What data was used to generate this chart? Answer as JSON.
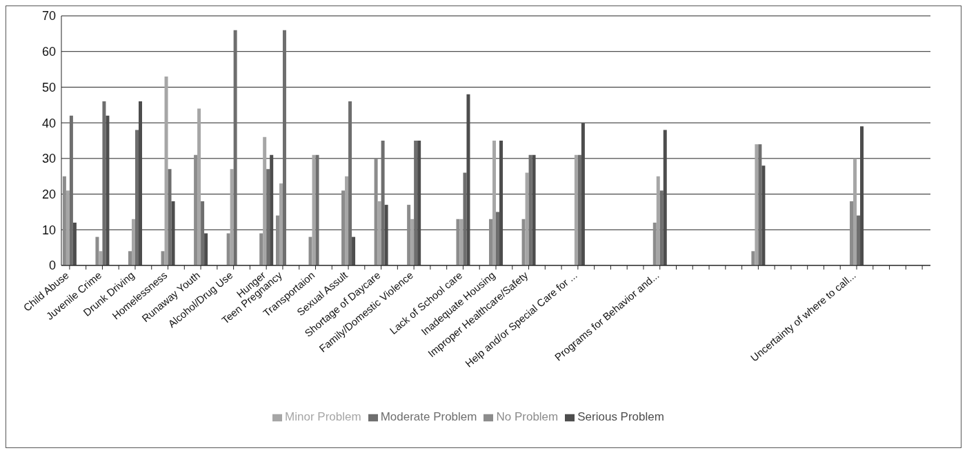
{
  "chart_data": {
    "type": "bar",
    "categories": [
      "Child Abuse",
      null,
      "Juvenile Crime",
      null,
      "Drunk Driving",
      null,
      "Homelessness",
      null,
      "Runaway Youth",
      null,
      "Alcohol/Drug Use",
      null,
      "Hunger",
      "Teen Pregnancy",
      null,
      "Transportaion",
      null,
      "Sexual Assult",
      null,
      "Shortage of Daycare",
      null,
      "Family/Domestic Violence",
      null,
      null,
      "Lack of School care",
      null,
      "Inadequate Housing",
      null,
      "Improper Healthcare/Safety",
      null,
      null,
      "Help and/or Special Care for ...",
      null,
      null,
      null,
      null,
      "Programs for Behavior and...",
      null,
      null,
      null,
      null,
      null,
      null,
      null,
      null,
      null,
      null,
      null,
      "Uncertainty of where to call...",
      null,
      null,
      null,
      null
    ],
    "series": [
      {
        "name": "No Problem",
        "color": "#8c8c8c",
        "values": [
          25,
          null,
          8,
          null,
          4,
          null,
          4,
          null,
          31,
          null,
          9,
          null,
          9,
          14,
          null,
          8,
          null,
          21,
          null,
          30,
          null,
          17,
          null,
          null,
          13,
          null,
          13,
          null,
          13,
          null,
          null,
          null,
          null,
          null,
          null,
          null,
          12,
          null,
          null,
          null,
          null,
          null,
          4,
          null,
          null,
          null,
          null,
          null,
          18,
          null,
          null,
          null,
          null
        ]
      },
      {
        "name": "Minor Problem",
        "color": "#a6a6a6",
        "values": [
          21,
          null,
          4,
          null,
          13,
          null,
          53,
          null,
          44,
          null,
          27,
          null,
          36,
          23,
          null,
          31,
          null,
          25,
          null,
          18,
          null,
          13,
          null,
          null,
          13,
          null,
          35,
          null,
          26,
          null,
          null,
          31,
          null,
          null,
          null,
          null,
          25,
          null,
          null,
          null,
          null,
          null,
          34,
          null,
          null,
          null,
          null,
          null,
          30,
          null,
          null,
          null,
          null
        ]
      },
      {
        "name": "Moderate Problem",
        "color": "#6e6e6e",
        "values": [
          42,
          null,
          46,
          null,
          38,
          null,
          27,
          null,
          18,
          null,
          66,
          null,
          27,
          66,
          null,
          31,
          null,
          46,
          null,
          35,
          null,
          35,
          null,
          null,
          26,
          null,
          15,
          null,
          31,
          null,
          null,
          31,
          null,
          null,
          null,
          null,
          21,
          null,
          null,
          null,
          null,
          null,
          34,
          null,
          null,
          null,
          null,
          null,
          14,
          null,
          null,
          null,
          null
        ]
      },
      {
        "name": "Serious Problem",
        "color": "#4d4d4d",
        "values": [
          12,
          null,
          42,
          null,
          46,
          null,
          18,
          null,
          9,
          null,
          null,
          null,
          31,
          null,
          null,
          null,
          null,
          8,
          null,
          17,
          null,
          35,
          null,
          null,
          48,
          null,
          35,
          null,
          31,
          null,
          null,
          40,
          null,
          null,
          null,
          null,
          38,
          null,
          null,
          null,
          null,
          null,
          28,
          null,
          null,
          null,
          null,
          null,
          39,
          null,
          null,
          null,
          null
        ]
      }
    ],
    "ylim": [
      0,
      70
    ],
    "yticks": [
      0,
      10,
      20,
      30,
      40,
      50,
      60,
      70
    ],
    "grid": "y",
    "legend": "bottom"
  }
}
